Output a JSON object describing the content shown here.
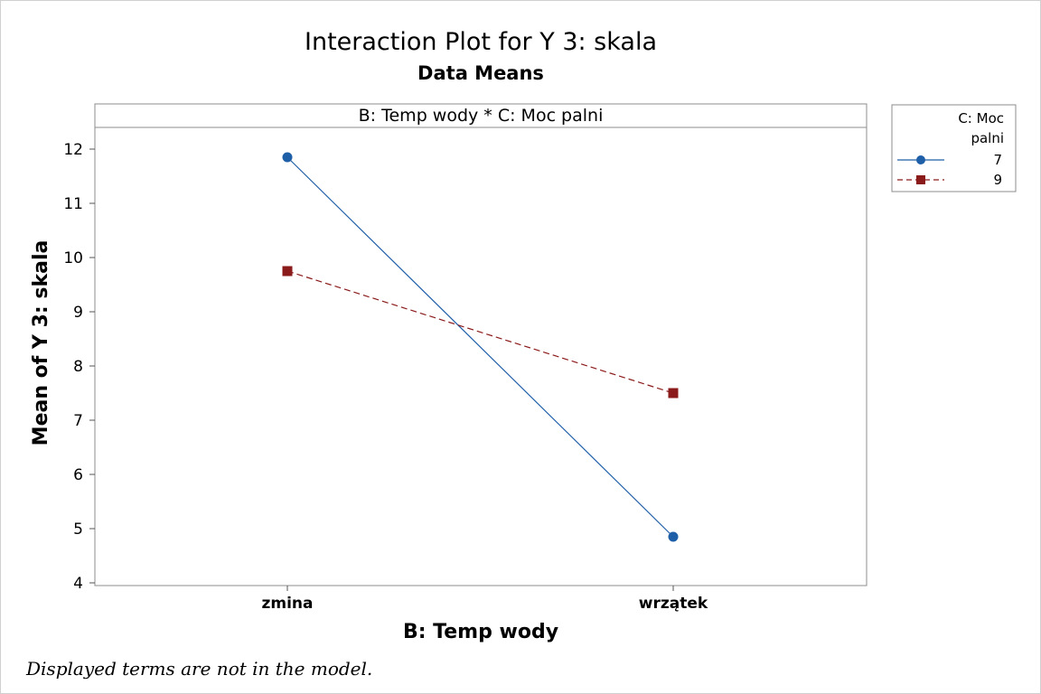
{
  "title": "Interaction Plot for Y 3: skala",
  "subtitle": "Data Means",
  "footnote": "Displayed terms are not in the model.",
  "colors": {
    "series_7": "#1f5fa8",
    "series_9": "#8b1a1a"
  },
  "chart_data": {
    "type": "line",
    "title": "Interaction Plot for Y 3: skala",
    "subtitle": "Data Means",
    "panel_label": "B: Temp wody * C: Moc palni",
    "xlabel": "B: Temp wody",
    "ylabel": "Mean of Y 3: skala",
    "categories": [
      "zmina",
      "wrzątek"
    ],
    "ylim": [
      3.95,
      12.4
    ],
    "yticks": [
      4,
      5,
      6,
      7,
      8,
      9,
      10,
      11,
      12
    ],
    "grid": false,
    "legend": {
      "title_line1": "C: Moc",
      "title_line2": "palni",
      "placement": "right"
    },
    "series": [
      {
        "name": "7",
        "values": [
          11.85,
          4.85
        ],
        "marker": "circle",
        "line": "solid",
        "color": "#1f5fa8"
      },
      {
        "name": "9",
        "values": [
          9.75,
          7.5
        ],
        "marker": "square",
        "line": "dashed",
        "color": "#8b1a1a"
      }
    ]
  }
}
